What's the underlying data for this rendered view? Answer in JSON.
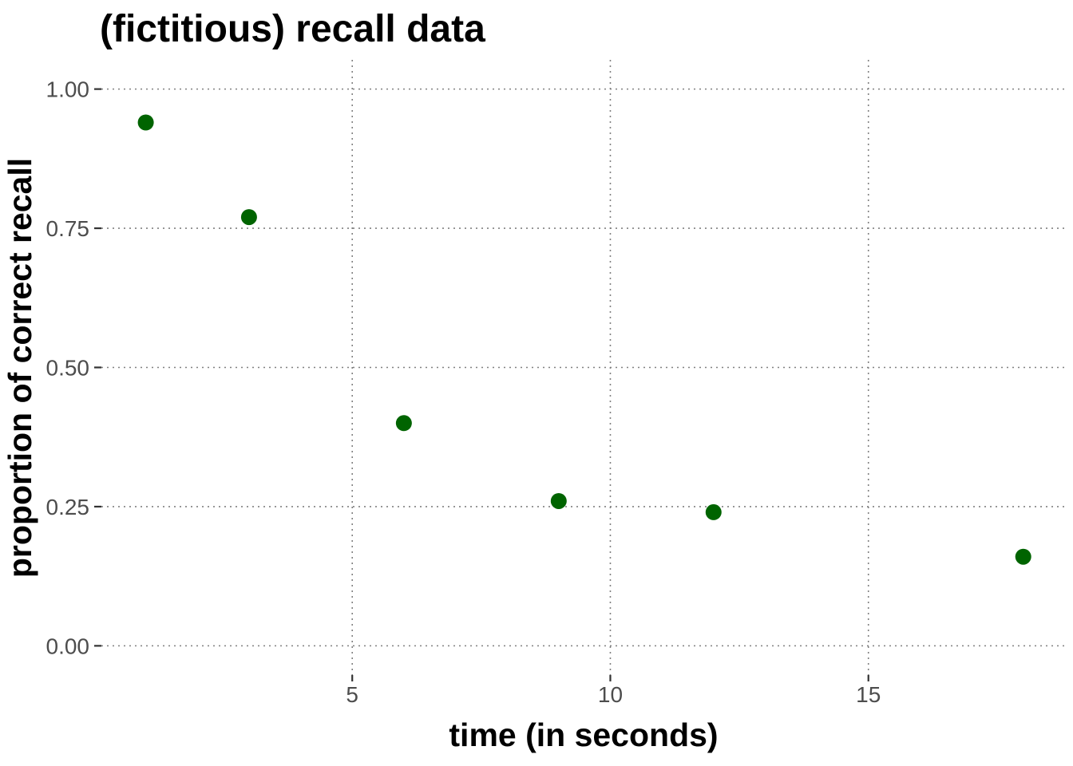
{
  "chart_data": {
    "type": "scatter",
    "title": "(fictitious) recall data",
    "xlabel": "time (in seconds)",
    "ylabel": "proportion of correct recall",
    "xlim": [
      0.14,
      18.84
    ],
    "ylim": [
      -0.0525,
      1.0525
    ],
    "x_ticks": [
      5,
      10,
      15
    ],
    "x_tick_labels": [
      "5",
      "10",
      "15"
    ],
    "y_ticks": [
      0,
      0.25,
      0.5,
      0.75,
      1
    ],
    "y_tick_labels": [
      "0.00",
      "0.25",
      "0.50",
      "0.75",
      "1.00"
    ],
    "grid": true,
    "legend": "none",
    "point_color": "#006400",
    "points": [
      {
        "x": 1,
        "y": 0.94
      },
      {
        "x": 3,
        "y": 0.77
      },
      {
        "x": 6,
        "y": 0.4
      },
      {
        "x": 9,
        "y": 0.26
      },
      {
        "x": 12,
        "y": 0.24
      },
      {
        "x": 18,
        "y": 0.16
      }
    ]
  }
}
